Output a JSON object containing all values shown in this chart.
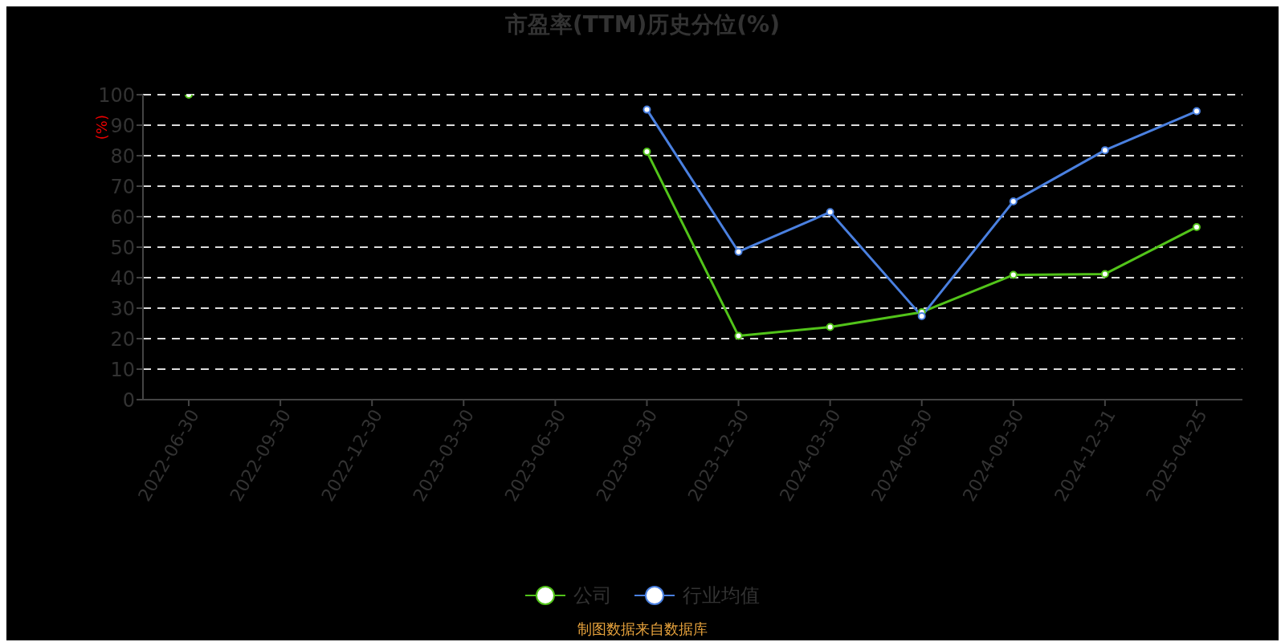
{
  "chart_data": {
    "type": "line",
    "title": "市盈率(TTM)历史分位(%)",
    "ylabel": "(%)",
    "categories": [
      "2022-06-30",
      "2022-09-30",
      "2022-12-30",
      "2023-03-30",
      "2023-06-30",
      "2023-09-30",
      "2023-12-30",
      "2024-03-30",
      "2024-06-30",
      "2024-09-30",
      "2024-12-31",
      "2025-04-25"
    ],
    "series": [
      {
        "name": "公司",
        "color": "#52c41a",
        "values": [
          100,
          null,
          null,
          null,
          null,
          81.3,
          20.9,
          23.8,
          28.7,
          40.9,
          41.2,
          56.6
        ]
      },
      {
        "name": "行业均值",
        "color": "#4a80e0",
        "values": [
          null,
          null,
          null,
          null,
          null,
          95.1,
          48.5,
          61.5,
          27.4,
          65,
          81.8,
          94.6
        ]
      }
    ],
    "ylim": [
      0,
      100
    ],
    "yticks": [
      0,
      10,
      20,
      30,
      40,
      50,
      60,
      70,
      80,
      90,
      100
    ],
    "grid": "y",
    "legend": "bottom",
    "marker": "circle",
    "line_style": "solid",
    "annotations": [
      "制图数据来自数据库"
    ]
  }
}
